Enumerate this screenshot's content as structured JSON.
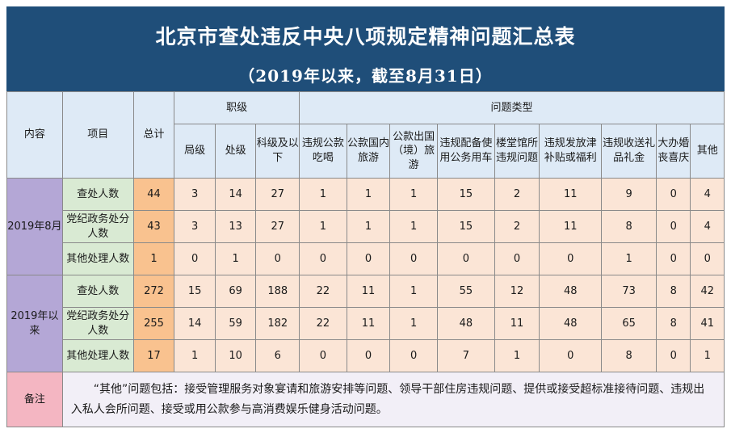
{
  "title": "北京市查处违反中央八项规定精神问题汇总表",
  "subtitle": "（2019年以来，截至8月31日）",
  "headers": {
    "content": "内容",
    "item": "项目",
    "total": "总计",
    "rank_group": "职级",
    "type_group": "问题类型",
    "rank": [
      "局级",
      "处级",
      "科级及以下"
    ],
    "types": [
      "违规公款吃喝",
      "公款国内旅游",
      "公款出国（境）旅游",
      "违规配备使用公务用车",
      "楼堂馆所违规问题",
      "违规发放津补贴或福利",
      "违规收送礼品礼金",
      "大办婚丧喜庆",
      "其他"
    ]
  },
  "sections": [
    {
      "label": "2019年8月",
      "rows": [
        {
          "item": "查处人数",
          "total": "44",
          "values": [
            "3",
            "14",
            "27",
            "1",
            "1",
            "1",
            "15",
            "2",
            "11",
            "9",
            "0",
            "4"
          ]
        },
        {
          "item": "党纪政务处分人数",
          "total": "43",
          "values": [
            "3",
            "13",
            "27",
            "1",
            "1",
            "1",
            "15",
            "2",
            "11",
            "8",
            "0",
            "4"
          ]
        },
        {
          "item": "其他处理人数",
          "total": "1",
          "values": [
            "0",
            "1",
            "0",
            "0",
            "0",
            "0",
            "0",
            "0",
            "0",
            "1",
            "0",
            "0"
          ]
        }
      ]
    },
    {
      "label": "2019年以来",
      "rows": [
        {
          "item": "查处人数",
          "total": "272",
          "values": [
            "15",
            "69",
            "188",
            "22",
            "11",
            "1",
            "55",
            "12",
            "48",
            "73",
            "8",
            "42"
          ]
        },
        {
          "item": "党纪政务处分人数",
          "total": "255",
          "values": [
            "14",
            "59",
            "182",
            "22",
            "11",
            "1",
            "48",
            "11",
            "48",
            "65",
            "8",
            "41"
          ]
        },
        {
          "item": "其他处理人数",
          "total": "17",
          "values": [
            "1",
            "10",
            "6",
            "0",
            "0",
            "0",
            "7",
            "1",
            "0",
            "8",
            "0",
            "1"
          ]
        }
      ]
    }
  ],
  "note": {
    "label": "备注",
    "text": "“其他”问题包括：接受管理服务对象宴请和旅游安排等问题、领导干部住房违规问题、提供或接受超标准接待问题、违规出入私人会所问题、接受或用公款参与高消费娱乐健身活动问题。"
  }
}
